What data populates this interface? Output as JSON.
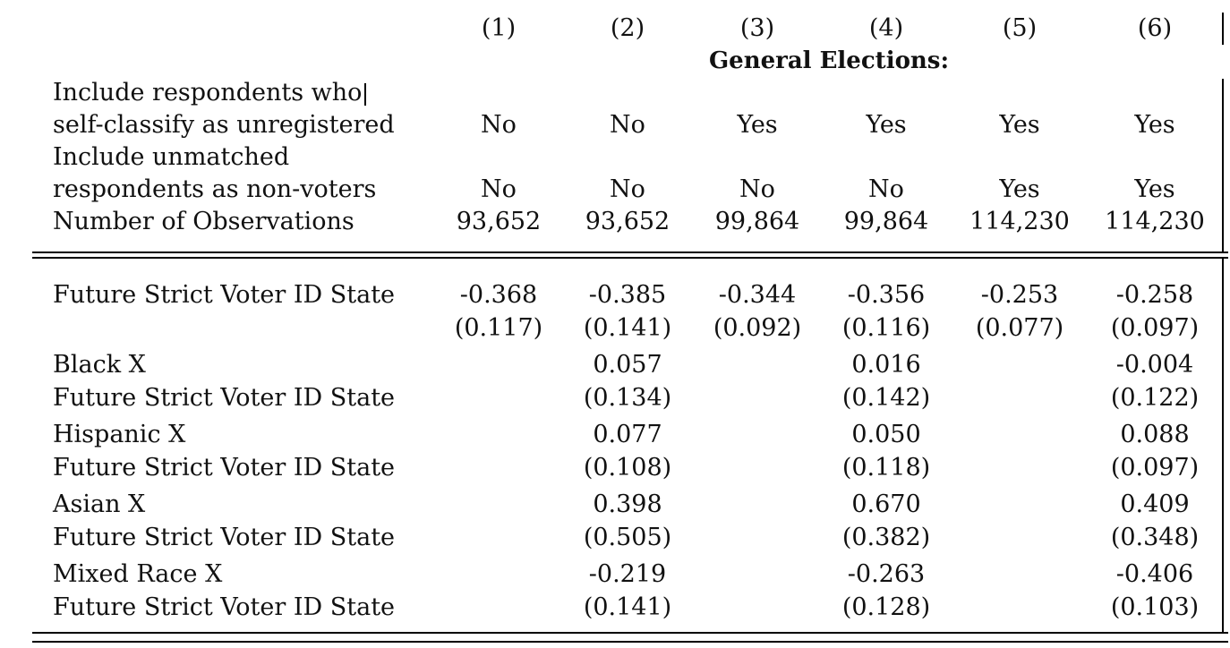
{
  "columns": [
    "(1)",
    "(2)",
    "(3)",
    "(4)",
    "(5)",
    "(6)"
  ],
  "header_title": "General Elections:",
  "spec_rows": [
    {
      "label_lines": [
        "Include respondents who",
        "self-classify as unregistered"
      ],
      "values": [
        "No",
        "No",
        "Yes",
        "Yes",
        "Yes",
        "Yes"
      ]
    },
    {
      "label_lines": [
        "Include unmatched",
        "respondents as non-voters"
      ],
      "values": [
        "No",
        "No",
        "No",
        "No",
        "Yes",
        "Yes"
      ]
    },
    {
      "label_lines": [
        "Number of Observations"
      ],
      "values": [
        "93,652",
        "93,652",
        "99,864",
        "99,864",
        "114,230",
        "114,230"
      ]
    }
  ],
  "coef_rows": [
    {
      "label_lines": [
        "Future Strict Voter ID State"
      ],
      "coef": [
        "-0.368",
        "-0.385",
        "-0.344",
        "-0.356",
        "-0.253",
        "-0.258"
      ],
      "se": [
        "(0.117)",
        "(0.141)",
        "(0.092)",
        "(0.116)",
        "(0.077)",
        "(0.097)"
      ]
    },
    {
      "label_lines": [
        "Black X",
        "Future Strict Voter ID State"
      ],
      "coef": [
        "",
        "0.057",
        "",
        "0.016",
        "",
        "-0.004"
      ],
      "se": [
        "",
        "(0.134)",
        "",
        "(0.142)",
        "",
        "(0.122)"
      ]
    },
    {
      "label_lines": [
        "Hispanic X",
        "Future Strict Voter ID State"
      ],
      "coef": [
        "",
        "0.077",
        "",
        "0.050",
        "",
        "0.088"
      ],
      "se": [
        "",
        "(0.108)",
        "",
        "(0.118)",
        "",
        "(0.097)"
      ]
    },
    {
      "label_lines": [
        "Asian X",
        "Future Strict Voter ID State"
      ],
      "coef": [
        "",
        "0.398",
        "",
        "0.670",
        "",
        "0.409"
      ],
      "se": [
        "",
        "(0.505)",
        "",
        "(0.382)",
        "",
        "(0.348)"
      ]
    },
    {
      "label_lines": [
        "Mixed Race X",
        "Future Strict Voter ID State"
      ],
      "coef": [
        "",
        "-0.219",
        "",
        "-0.263",
        "",
        "-0.406"
      ],
      "se": [
        "",
        "(0.141)",
        "",
        "(0.128)",
        "",
        "(0.103)"
      ]
    }
  ]
}
